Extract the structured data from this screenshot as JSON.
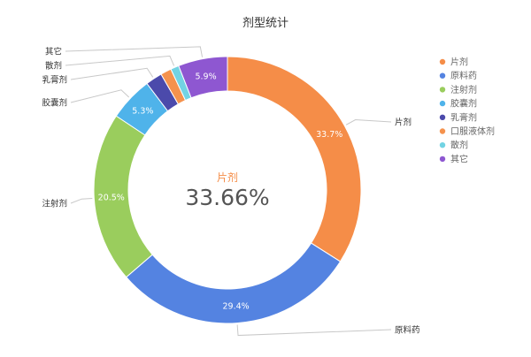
{
  "chart_data": {
    "type": "pie",
    "title": "剂型统计",
    "start_angle_deg": 0,
    "categories": [
      "片剂",
      "原料药",
      "注射剂",
      "胶囊剂",
      "乳膏剂",
      "口服液体剂",
      "散剂",
      "其它"
    ],
    "values": [
      33.7,
      29.4,
      20.5,
      5.3,
      2.0,
      1.3,
      1.0,
      5.9
    ],
    "slice_labels": [
      "33.7%",
      "29.4%",
      "20.5%",
      "5.3%",
      "",
      "",
      "",
      "5.9%"
    ],
    "colors": [
      "#f58d48",
      "#5483e1",
      "#9acd5d",
      "#4fb3ea",
      "#4b4aab",
      "#f5924d",
      "#72d3e3",
      "#8e57d1"
    ],
    "legend": [
      "片剂",
      "原料药",
      "注射剂",
      "胶囊剂",
      "乳膏剂",
      "口服液体剂",
      "散剂",
      "其它"
    ],
    "legend_position": "right",
    "center": {
      "name": "片剂",
      "value": "33.66%",
      "color": "#f58d48"
    }
  }
}
